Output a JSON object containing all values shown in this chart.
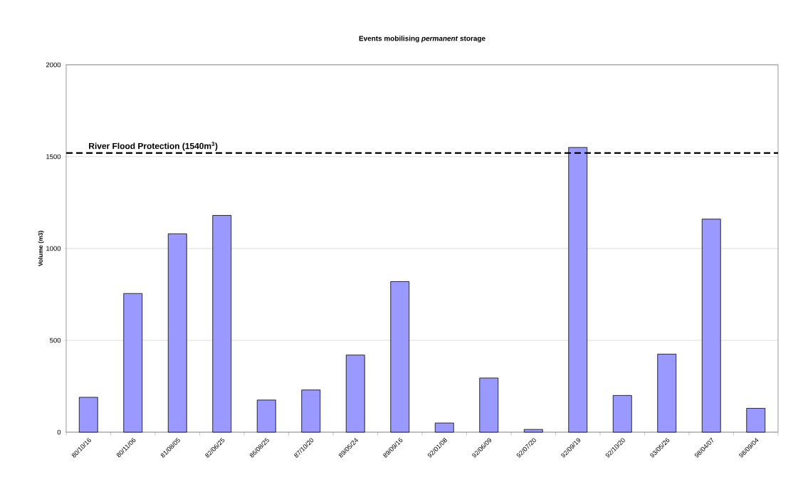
{
  "chart_data": {
    "type": "bar",
    "title": "Events mobilising *permanent* storage",
    "ylabel": "Volume (m3)",
    "categories": [
      "80/10/16",
      "80/11/06",
      "81/08/05",
      "82/06/25",
      "86/08/25",
      "87/10/20",
      "89/05/24",
      "89/09/16",
      "92/01/08",
      "92/06/09",
      "92/07/20",
      "92/09/19",
      "92/10/20",
      "93/05/26",
      "98/04/07",
      "98/09/04"
    ],
    "values": [
      190,
      755,
      1080,
      1180,
      175,
      230,
      420,
      820,
      50,
      295,
      15,
      1550,
      200,
      425,
      1160,
      130
    ],
    "color": "#9999ff",
    "ylim": [
      0,
      2000
    ],
    "yticks": [
      0,
      500,
      1000,
      1500,
      2000
    ],
    "grid": "y",
    "ref_lines": [
      {
        "axis": "y",
        "value": 1520,
        "label": "River Flood Protection (1540m$^{3}$)",
        "color": "#000000",
        "line_style": "dashed"
      }
    ]
  }
}
